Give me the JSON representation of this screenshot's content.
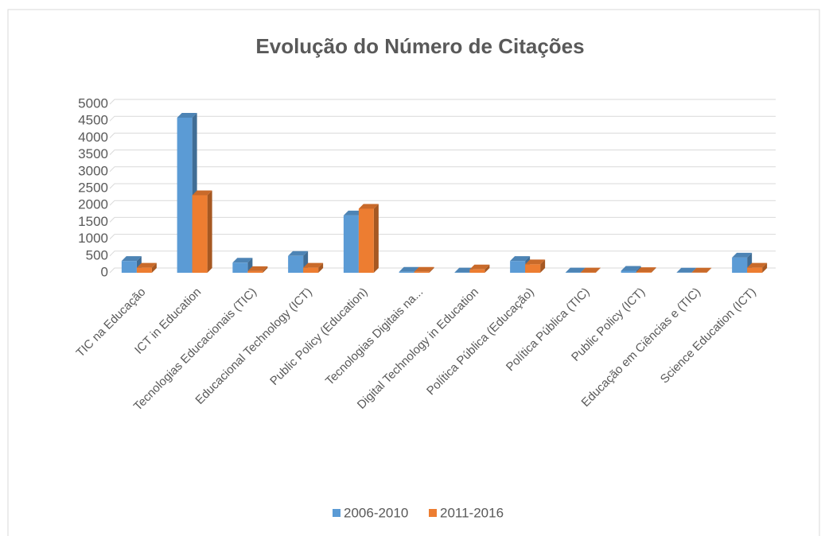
{
  "chart_data": {
    "type": "bar",
    "title": "Evolução do Número de Citações",
    "categories": [
      "TIC na Educação",
      "ICT in Education",
      "Tecnologias Educacionais (TIC)",
      "Educacional Technology (ICT)",
      "Public Policy (Education)",
      "Tecnologias Digitais na...",
      "Digital Technology in Education",
      "Política Pública (Educação)",
      "Política Pública (TIC)",
      "Public Policy (ICT)",
      "Educação em Ciências e (TIC)",
      "Science Education (ICT)"
    ],
    "series": [
      {
        "name": "2006-2010",
        "color": "#5b9bd5",
        "values": [
          350,
          4600,
          300,
          500,
          1700,
          30,
          10,
          350,
          10,
          60,
          5,
          450
        ]
      },
      {
        "name": "2011-2016",
        "color": "#ed7d31",
        "values": [
          150,
          2300,
          50,
          150,
          1900,
          30,
          100,
          250,
          10,
          20,
          5,
          150
        ]
      }
    ],
    "ylim": [
      0,
      5000
    ],
    "yticks": [
      0,
      500,
      1000,
      1500,
      2000,
      2500,
      3000,
      3500,
      4000,
      4500,
      5000
    ],
    "grid": true,
    "legend": "bottom"
  }
}
